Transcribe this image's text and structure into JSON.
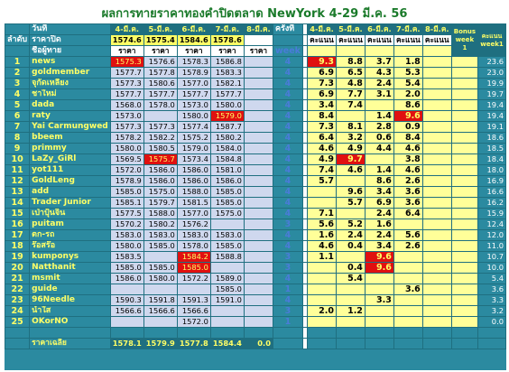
{
  "title": "ผลการทายราคาทองคำปิดตลาด NewYork 4-29 มี.ค. 56",
  "headers": {
    "date_label": "วันที่",
    "close_label": "ราคาปิด",
    "rank_label": "ลำดับ",
    "name_label": "ชื่อผู้ทาย",
    "round_label": "ครั้งที่",
    "week_label": "week",
    "dates": [
      "4-มี.ค.",
      "5-มี.ค.",
      "6-มี.ค.",
      "7-มี.ค.",
      "8-มี.ค."
    ],
    "closes": [
      "1574.6",
      "1575.4",
      "1584.6",
      "1578.6",
      ""
    ],
    "price_col": "ราคา",
    "score_dates": [
      "4-มี.ค.",
      "5-มี.ค.",
      "6-มี.ค.",
      "7-มี.ค.",
      "8-มี.ค."
    ],
    "score_col": "คะแนน",
    "bonus_label": "Bonus week 1",
    "total_label": "คะแนน week1"
  },
  "rows": [
    {
      "idx": "1",
      "name": "news",
      "p": [
        "1575.3",
        "1576.6",
        "1578.3",
        "1586.8",
        ""
      ],
      "ph": [
        true,
        false,
        false,
        false,
        false
      ],
      "round": "4",
      "s": [
        "9.3",
        "8.8",
        "3.7",
        "1.8",
        ""
      ],
      "sh": [
        true,
        false,
        false,
        false,
        false
      ],
      "total": "23.6"
    },
    {
      "idx": "2",
      "name": "goldmember",
      "p": [
        "1577.7",
        "1577.8",
        "1578.9",
        "1583.3",
        ""
      ],
      "ph": [
        false,
        false,
        false,
        false,
        false
      ],
      "round": "4",
      "s": [
        "6.9",
        "6.5",
        "4.3",
        "5.3",
        ""
      ],
      "sh": [
        false,
        false,
        false,
        false,
        false
      ],
      "total": "23.0"
    },
    {
      "idx": "3",
      "name": "จุกัดเหลียง",
      "p": [
        "1577.3",
        "1580.6",
        "1577.0",
        "1582.1",
        ""
      ],
      "ph": [
        false,
        false,
        false,
        false,
        false
      ],
      "round": "4",
      "s": [
        "7.3",
        "4.8",
        "2.4",
        "5.4",
        ""
      ],
      "sh": [
        false,
        false,
        false,
        false,
        false
      ],
      "total": "19.9"
    },
    {
      "idx": "4",
      "name": "ชาใหม่",
      "p": [
        "1577.7",
        "1577.7",
        "1577.7",
        "1577.7",
        ""
      ],
      "ph": [
        false,
        false,
        false,
        false,
        false
      ],
      "round": "4",
      "s": [
        "6.9",
        "7.7",
        "3.1",
        "2.0",
        ""
      ],
      "sh": [
        false,
        false,
        false,
        false,
        false
      ],
      "total": "19.7"
    },
    {
      "idx": "5",
      "name": "dada",
      "p": [
        "1568.0",
        "1578.0",
        "1573.0",
        "1580.0",
        ""
      ],
      "ph": [
        false,
        false,
        false,
        false,
        false
      ],
      "round": "4",
      "s": [
        "3.4",
        "7.4",
        "",
        "8.6",
        ""
      ],
      "sh": [
        false,
        false,
        false,
        false,
        false
      ],
      "total": "19.4"
    },
    {
      "idx": "6",
      "name": "raty",
      "p": [
        "1573.0",
        "",
        "1580.0",
        "1579.0",
        ""
      ],
      "ph": [
        false,
        false,
        false,
        true,
        false
      ],
      "round": "4",
      "s": [
        "8.4",
        "",
        "1.4",
        "9.6",
        ""
      ],
      "sh": [
        false,
        false,
        false,
        true,
        false
      ],
      "total": "19.4"
    },
    {
      "idx": "7",
      "name": "Yai Carmungwed",
      "p": [
        "1577.3",
        "1577.3",
        "1577.4",
        "1587.7",
        ""
      ],
      "ph": [
        false,
        false,
        false,
        false,
        false
      ],
      "round": "4",
      "s": [
        "7.3",
        "8.1",
        "2.8",
        "0.9",
        ""
      ],
      "sh": [
        false,
        false,
        false,
        false,
        false
      ],
      "total": "19.1"
    },
    {
      "idx": "8",
      "name": "bbeem",
      "p": [
        "1578.2",
        "1582.2",
        "1575.2",
        "1580.2",
        ""
      ],
      "ph": [
        false,
        false,
        false,
        false,
        false
      ],
      "round": "4",
      "s": [
        "6.4",
        "3.2",
        "0.6",
        "8.4",
        ""
      ],
      "sh": [
        false,
        false,
        false,
        false,
        false
      ],
      "total": "18.6"
    },
    {
      "idx": "9",
      "name": "primmy",
      "p": [
        "1580.0",
        "1580.5",
        "1579.0",
        "1584.0",
        ""
      ],
      "ph": [
        false,
        false,
        false,
        false,
        false
      ],
      "round": "4",
      "s": [
        "4.6",
        "4.9",
        "4.4",
        "4.6",
        ""
      ],
      "sh": [
        false,
        false,
        false,
        false,
        false
      ],
      "total": "18.5"
    },
    {
      "idx": "10",
      "name": "LaZy_GiRl",
      "p": [
        "1569.5",
        "1575.7",
        "1573.4",
        "1584.8",
        ""
      ],
      "ph": [
        false,
        true,
        false,
        false,
        false
      ],
      "round": "4",
      "s": [
        "4.9",
        "9.7",
        "",
        "3.8",
        ""
      ],
      "sh": [
        false,
        true,
        false,
        false,
        false
      ],
      "total": "18.4"
    },
    {
      "idx": "11",
      "name": "yot111",
      "p": [
        "1572.0",
        "1586.0",
        "1586.0",
        "1581.0",
        ""
      ],
      "ph": [
        false,
        false,
        false,
        false,
        false
      ],
      "round": "4",
      "s": [
        "7.4",
        "4.6",
        "1.4",
        "4.6",
        ""
      ],
      "sh": [
        false,
        false,
        false,
        false,
        false
      ],
      "total": "18.0"
    },
    {
      "idx": "12",
      "name": "GoldLeng",
      "p": [
        "1578.9",
        "1586.0",
        "1586.0",
        "1586.0",
        ""
      ],
      "ph": [
        false,
        false,
        false,
        false,
        false
      ],
      "round": "4",
      "s": [
        "5.7",
        "",
        "8.6",
        "2.6",
        ""
      ],
      "sh": [
        false,
        false,
        false,
        false,
        false
      ],
      "total": "16.9"
    },
    {
      "idx": "13",
      "name": "add",
      "p": [
        "1585.0",
        "1575.0",
        "1588.0",
        "1585.0",
        ""
      ],
      "ph": [
        false,
        false,
        false,
        false,
        false
      ],
      "round": "4",
      "s": [
        "",
        "9.6",
        "3.4",
        "3.6",
        ""
      ],
      "sh": [
        false,
        false,
        false,
        false,
        false
      ],
      "total": "16.6"
    },
    {
      "idx": "14",
      "name": "Trader Junior",
      "p": [
        "1585.1",
        "1579.7",
        "1581.5",
        "1585.0",
        ""
      ],
      "ph": [
        false,
        false,
        false,
        false,
        false
      ],
      "round": "4",
      "s": [
        "",
        "5.7",
        "6.9",
        "3.6",
        ""
      ],
      "sh": [
        false,
        false,
        false,
        false,
        false
      ],
      "total": "16.2"
    },
    {
      "idx": "15",
      "name": "เป่าปุ้นจิ้น",
      "p": [
        "1577.5",
        "1588.0",
        "1577.0",
        "1575.0",
        ""
      ],
      "ph": [
        false,
        false,
        false,
        false,
        false
      ],
      "round": "4",
      "s": [
        "7.1",
        "",
        "2.4",
        "6.4",
        ""
      ],
      "sh": [
        false,
        false,
        false,
        false,
        false
      ],
      "total": "15.9"
    },
    {
      "idx": "16",
      "name": "puitam",
      "p": [
        "1570.2",
        "1580.2",
        "1576.2",
        "",
        ""
      ],
      "ph": [
        false,
        false,
        false,
        false,
        false
      ],
      "round": "3",
      "s": [
        "5.6",
        "5.2",
        "1.6",
        "",
        ""
      ],
      "sh": [
        false,
        false,
        false,
        false,
        false
      ],
      "total": "12.4"
    },
    {
      "idx": "17",
      "name": "ตก-รถ",
      "p": [
        "1583.0",
        "1583.0",
        "1583.0",
        "1583.0",
        ""
      ],
      "ph": [
        false,
        false,
        false,
        false,
        false
      ],
      "round": "4",
      "s": [
        "1.6",
        "2.4",
        "2.4",
        "5.6",
        ""
      ],
      "sh": [
        false,
        false,
        false,
        false,
        false
      ],
      "total": "12.0"
    },
    {
      "idx": "18",
      "name": "ร๊อสร๊อ",
      "p": [
        "1580.0",
        "1585.0",
        "1578.0",
        "1585.0",
        ""
      ],
      "ph": [
        false,
        false,
        false,
        false,
        false
      ],
      "round": "4",
      "s": [
        "4.6",
        "0.4",
        "3.4",
        "2.6",
        ""
      ],
      "sh": [
        false,
        false,
        false,
        false,
        false
      ],
      "total": "11.0"
    },
    {
      "idx": "19",
      "name": "kumponys",
      "p": [
        "1583.5",
        "",
        "1584.2",
        "1588.8",
        ""
      ],
      "ph": [
        false,
        false,
        true,
        false,
        false
      ],
      "round": "3",
      "s": [
        "1.1",
        "",
        "9.6",
        "",
        ""
      ],
      "sh": [
        false,
        false,
        true,
        false,
        false
      ],
      "total": "10.7"
    },
    {
      "idx": "20",
      "name": "Natthanit",
      "p": [
        "1585.0",
        "1585.0",
        "1585.0",
        "",
        ""
      ],
      "ph": [
        false,
        false,
        true,
        false,
        false
      ],
      "round": "3",
      "s": [
        "",
        "0.4",
        "9.6",
        "",
        ""
      ],
      "sh": [
        false,
        false,
        true,
        false,
        false
      ],
      "total": "10.0"
    },
    {
      "idx": "21",
      "name": "msmit",
      "p": [
        "1586.0",
        "1580.0",
        "1572.2",
        "1589.0",
        ""
      ],
      "ph": [
        false,
        false,
        false,
        false,
        false
      ],
      "round": "4",
      "s": [
        "",
        "5.4",
        "",
        "",
        ""
      ],
      "sh": [
        false,
        false,
        false,
        false,
        false
      ],
      "total": "5.4"
    },
    {
      "idx": "22",
      "name": "guide",
      "p": [
        "",
        "",
        "",
        "1585.0",
        ""
      ],
      "ph": [
        false,
        false,
        false,
        false,
        false
      ],
      "round": "1",
      "s": [
        "",
        "",
        "",
        "3.6",
        ""
      ],
      "sh": [
        false,
        false,
        false,
        false,
        false
      ],
      "total": "3.6"
    },
    {
      "idx": "23",
      "name": "96Needle",
      "p": [
        "1590.3",
        "1591.8",
        "1591.3",
        "1591.0",
        ""
      ],
      "ph": [
        false,
        false,
        false,
        false,
        false
      ],
      "round": "4",
      "s": [
        "",
        "",
        "3.3",
        "",
        ""
      ],
      "sh": [
        false,
        false,
        false,
        false,
        false
      ],
      "total": "3.3"
    },
    {
      "idx": "24",
      "name": "น้ำใส",
      "p": [
        "1566.6",
        "1566.6",
        "1566.6",
        "",
        ""
      ],
      "ph": [
        false,
        false,
        false,
        false,
        false
      ],
      "round": "3",
      "s": [
        "2.0",
        "1.2",
        "",
        "",
        ""
      ],
      "sh": [
        false,
        false,
        false,
        false,
        false
      ],
      "total": "3.2"
    },
    {
      "idx": "25",
      "name": "OKorNO",
      "p": [
        "",
        "",
        "1572.0",
        "",
        ""
      ],
      "ph": [
        false,
        false,
        false,
        false,
        false
      ],
      "round": "1",
      "s": [
        "",
        "",
        "",
        "",
        ""
      ],
      "sh": [
        false,
        false,
        false,
        false,
        false
      ],
      "total": "0.0"
    }
  ],
  "footer": {
    "label": "ราคาเฉลี่ย",
    "avgs": [
      "1578.1",
      "1579.9",
      "1577.8",
      "1584.4",
      "0.0"
    ]
  },
  "colors": {
    "background": "#2b8aa0",
    "name_text": "#ffff66",
    "highlight": "#e01010",
    "price_cell": "#cfd8ee",
    "score_cell": "#ffff99",
    "week_text": "#4a7bd8",
    "title_text": "#1a7a2a"
  }
}
